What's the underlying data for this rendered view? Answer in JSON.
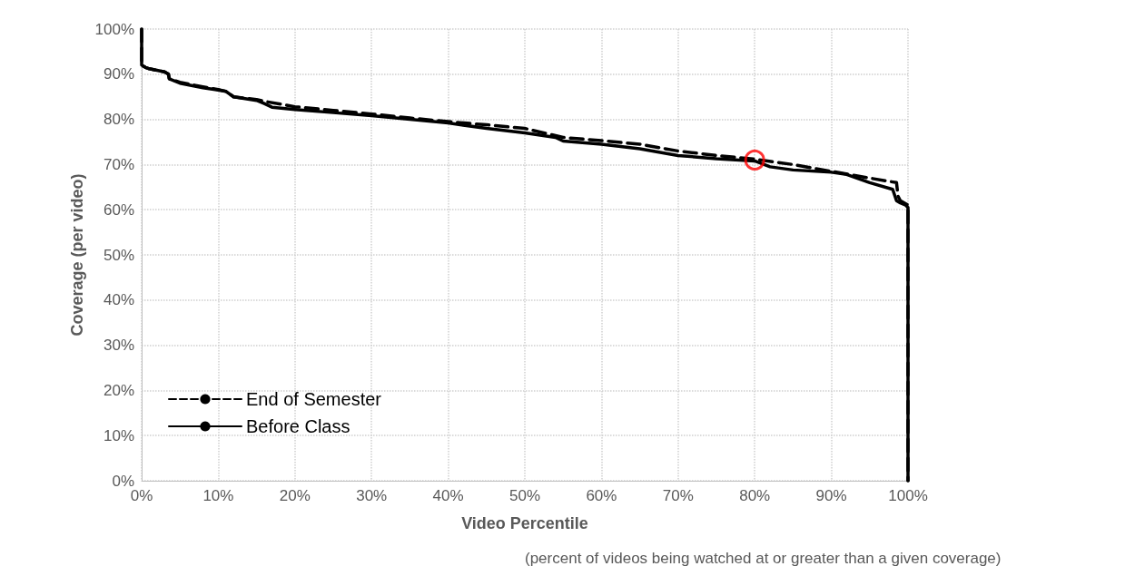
{
  "chart_data": {
    "type": "line",
    "xlabel": "Video Percentile",
    "ylabel": "Coverage (per video)",
    "annotations": [
      "(percent of videos being watched at or greater than a given coverage)"
    ],
    "xlim": [
      0,
      100
    ],
    "ylim": [
      0,
      100
    ],
    "xticks": [
      {
        "value": 0,
        "label": "0%"
      },
      {
        "value": 10,
        "label": "10%"
      },
      {
        "value": 20,
        "label": "20%"
      },
      {
        "value": 30,
        "label": "30%"
      },
      {
        "value": 40,
        "label": "40%"
      },
      {
        "value": 50,
        "label": "50%"
      },
      {
        "value": 60,
        "label": "60%"
      },
      {
        "value": 70,
        "label": "70%"
      },
      {
        "value": 80,
        "label": "80%"
      },
      {
        "value": 90,
        "label": "90%"
      },
      {
        "value": 100,
        "label": "100%"
      }
    ],
    "yticks": [
      {
        "value": 0,
        "label": "0%"
      },
      {
        "value": 10,
        "label": "10%"
      },
      {
        "value": 20,
        "label": "20%"
      },
      {
        "value": 30,
        "label": "30%"
      },
      {
        "value": 40,
        "label": "40%"
      },
      {
        "value": 50,
        "label": "50%"
      },
      {
        "value": 60,
        "label": "60%"
      },
      {
        "value": 70,
        "label": "70%"
      },
      {
        "value": 80,
        "label": "80%"
      },
      {
        "value": 90,
        "label": "90%"
      },
      {
        "value": 100,
        "label": "100%"
      }
    ],
    "grid": true,
    "legend": "bottom left",
    "marker": "none",
    "series": [
      {
        "name": "End of Semester",
        "color": "#000000",
        "line_style": "dashed",
        "x": [
          0,
          0,
          0.5,
          1,
          3,
          3.5,
          3.6,
          5,
          8,
          10,
          11,
          12,
          15,
          16,
          20,
          25,
          30,
          35,
          40,
          45,
          50,
          55,
          60,
          65,
          70,
          75,
          80,
          85,
          90,
          95,
          98.5,
          98.7,
          99,
          100,
          100
        ],
        "values": [
          100,
          92,
          91.5,
          91.2,
          90.5,
          90,
          89,
          88.2,
          87.2,
          86.6,
          86.2,
          85,
          84.4,
          84,
          82.8,
          82,
          81.2,
          80.3,
          79.5,
          78.8,
          78,
          76,
          75.3,
          74.5,
          73,
          72,
          71.2,
          70,
          68.5,
          67,
          66,
          63,
          62,
          61,
          0
        ]
      },
      {
        "name": "Before Class",
        "color": "#000000",
        "line_style": "solid",
        "x": [
          0,
          0,
          0.5,
          1,
          3,
          3.5,
          3.6,
          5,
          8,
          10,
          11,
          12,
          15,
          16,
          17,
          20,
          25,
          30,
          35,
          40,
          45,
          50,
          54,
          55,
          60,
          65,
          70,
          75,
          80,
          82,
          85,
          90,
          92,
          95,
          98,
          98.5,
          99,
          99.7,
          100,
          100
        ],
        "values": [
          100,
          92,
          91.5,
          91.2,
          90.5,
          90,
          89,
          88,
          87,
          86.5,
          86.2,
          85,
          84.2,
          83.5,
          82.7,
          82.2,
          81.5,
          80.8,
          80,
          79.2,
          78,
          77,
          76,
          75.2,
          74.5,
          73.5,
          72,
          71.3,
          70.8,
          69.5,
          68.8,
          68.3,
          67.8,
          66,
          64.5,
          62,
          61.5,
          61,
          60.5,
          0
        ]
      },
      {
        "type": "scatter",
        "marker": "circle",
        "color": "#ff0000",
        "x": [
          80
        ],
        "values": [
          71
        ]
      }
    ]
  }
}
